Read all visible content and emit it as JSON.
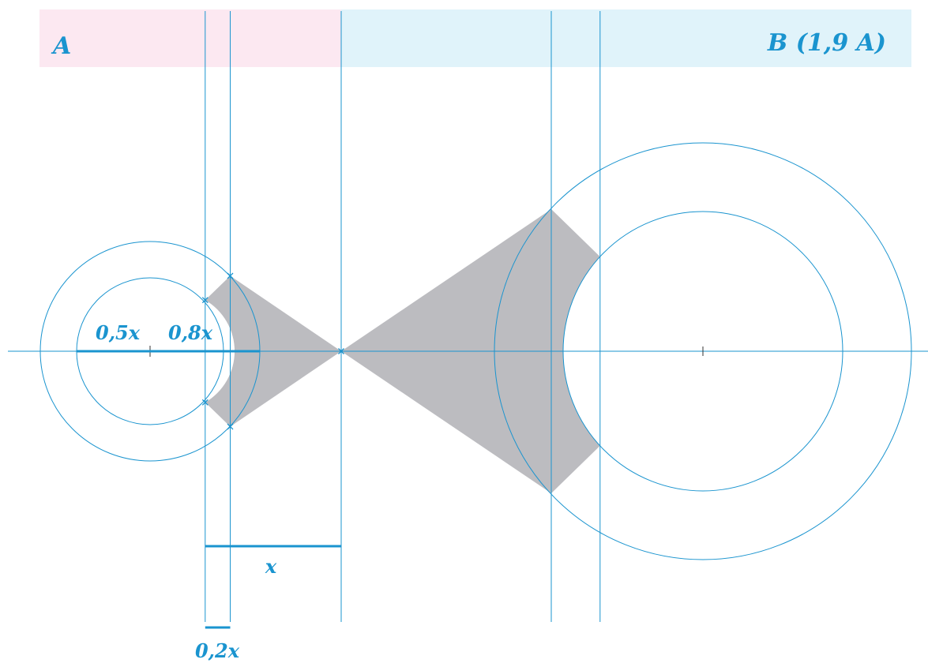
{
  "header": {
    "left_label": "A",
    "right_label": "B (1,9 A)",
    "left_color": "#fce8f1",
    "right_color": "#e0f3fa"
  },
  "labels": {
    "r_inner": "0,5x",
    "r_outer": "0,8x",
    "distance": "x",
    "offset": "0,2x"
  },
  "colors": {
    "line": "#1a94cf",
    "fill": "#bcbcc0"
  }
}
